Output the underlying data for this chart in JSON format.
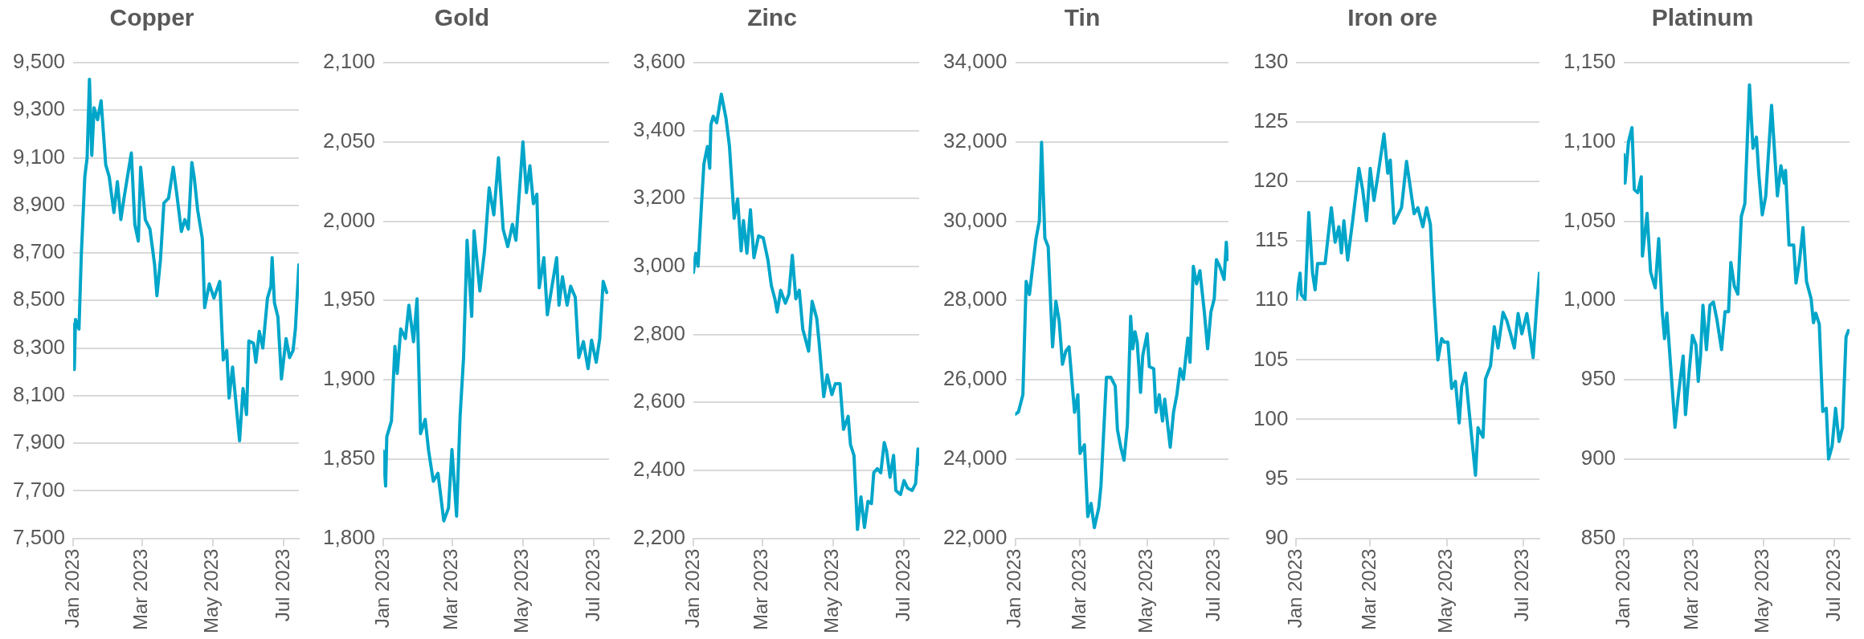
{
  "chart_data": [
    {
      "type": "line",
      "title": "Copper",
      "color": "#00a6c9",
      "grid": "y",
      "xlim": [
        "2023-01-01",
        "2023-07-14"
      ],
      "xticks": [
        {
          "value": "2023-01-01",
          "label": "Jan 2023"
        },
        {
          "value": "2023-03-01",
          "label": "Mar 2023"
        },
        {
          "value": "2023-05-01",
          "label": "May 2023"
        },
        {
          "value": "2023-07-01",
          "label": "Jul 2023"
        }
      ],
      "ylim": [
        7500,
        9500
      ],
      "yticks": [
        {
          "value": 7500,
          "label": "7,500"
        },
        {
          "value": 7700,
          "label": "7,700"
        },
        {
          "value": 7900,
          "label": "7,900"
        },
        {
          "value": 8100,
          "label": "8,100"
        },
        {
          "value": 8300,
          "label": "8,300"
        },
        {
          "value": 8500,
          "label": "8,500"
        },
        {
          "value": 8700,
          "label": "8,700"
        },
        {
          "value": 8900,
          "label": "8,900"
        },
        {
          "value": 9100,
          "label": "9,100"
        },
        {
          "value": 9300,
          "label": "9,300"
        },
        {
          "value": 9500,
          "label": "9,500"
        }
      ],
      "x": [
        "2023-01-01",
        "2023-01-02",
        "2023-01-03",
        "2023-01-06",
        "2023-01-08",
        "2023-01-11",
        "2023-01-13",
        "2023-01-15",
        "2023-01-17",
        "2023-01-19",
        "2023-01-22",
        "2023-01-25",
        "2023-01-29",
        "2023-02-01",
        "2023-02-05",
        "2023-02-08",
        "2023-02-11",
        "2023-02-14",
        "2023-02-20",
        "2023-02-23",
        "2023-02-26",
        "2023-02-28",
        "2023-03-04",
        "2023-03-08",
        "2023-03-12",
        "2023-03-14",
        "2023-03-17",
        "2023-03-20",
        "2023-03-24",
        "2023-03-28",
        "2023-03-31",
        "2023-04-04",
        "2023-04-07",
        "2023-04-10",
        "2023-04-13",
        "2023-04-15",
        "2023-04-18",
        "2023-04-22",
        "2023-04-24",
        "2023-04-28",
        "2023-05-02",
        "2023-05-07",
        "2023-05-10",
        "2023-05-13",
        "2023-05-15",
        "2023-05-18",
        "2023-05-24",
        "2023-05-27",
        "2023-05-30",
        "2023-06-01",
        "2023-06-05",
        "2023-06-07",
        "2023-06-10",
        "2023-06-13",
        "2023-06-17",
        "2023-06-20",
        "2023-06-21",
        "2023-06-23",
        "2023-06-26",
        "2023-06-29",
        "2023-07-03",
        "2023-07-06",
        "2023-07-09",
        "2023-07-11",
        "2023-07-14"
      ],
      "values": [
        8400,
        8210,
        8420,
        8380,
        8690,
        9020,
        9100,
        9430,
        9110,
        9310,
        9260,
        9340,
        9070,
        9020,
        8870,
        9000,
        8840,
        8940,
        9120,
        8820,
        8750,
        9060,
        8840,
        8800,
        8650,
        8520,
        8670,
        8910,
        8930,
        9060,
        8950,
        8790,
        8840,
        8800,
        9080,
        9020,
        8880,
        8760,
        8470,
        8570,
        8510,
        8580,
        8250,
        8290,
        8090,
        8220,
        7910,
        8130,
        8020,
        8330,
        8320,
        8240,
        8370,
        8300,
        8510,
        8560,
        8680,
        8490,
        8430,
        8170,
        8340,
        8260,
        8290,
        8380,
        8650
      ]
    },
    {
      "type": "line",
      "title": "Gold",
      "color": "#00a6c9",
      "grid": "y",
      "xlim": [
        "2023-01-01",
        "2023-07-14"
      ],
      "xticks": [
        {
          "value": "2023-01-01",
          "label": "Jan 2023"
        },
        {
          "value": "2023-03-01",
          "label": "Mar 2023"
        },
        {
          "value": "2023-05-01",
          "label": "May 2023"
        },
        {
          "value": "2023-07-01",
          "label": "Jul 2023"
        }
      ],
      "ylim": [
        1800,
        2100
      ],
      "yticks": [
        {
          "value": 1800,
          "label": "1,800"
        },
        {
          "value": 1850,
          "label": "1,850"
        },
        {
          "value": 1900,
          "label": "1,900"
        },
        {
          "value": 1950,
          "label": "1,950"
        },
        {
          "value": 2000,
          "label": "2,000"
        },
        {
          "value": 2050,
          "label": "2,050"
        },
        {
          "value": 2100,
          "label": "2,100"
        }
      ],
      "x": [
        "2023-01-01",
        "2023-01-03",
        "2023-01-04",
        "2023-01-08",
        "2023-01-11",
        "2023-01-13",
        "2023-01-16",
        "2023-01-20",
        "2023-01-23",
        "2023-01-27",
        "2023-01-30",
        "2023-02-02",
        "2023-02-06",
        "2023-02-09",
        "2023-02-13",
        "2023-02-17",
        "2023-02-22",
        "2023-02-26",
        "2023-03-01",
        "2023-03-05",
        "2023-03-08",
        "2023-03-11",
        "2023-03-14",
        "2023-03-18",
        "2023-03-20",
        "2023-03-25",
        "2023-03-29",
        "2023-04-02",
        "2023-04-06",
        "2023-04-10",
        "2023-04-14",
        "2023-04-18",
        "2023-04-22",
        "2023-04-25",
        "2023-05-01",
        "2023-05-04",
        "2023-05-07",
        "2023-05-10",
        "2023-05-13",
        "2023-05-15",
        "2023-05-19",
        "2023-05-22",
        "2023-05-26",
        "2023-05-30",
        "2023-06-01",
        "2023-06-04",
        "2023-06-08",
        "2023-06-11",
        "2023-06-15",
        "2023-06-18",
        "2023-06-22",
        "2023-06-26",
        "2023-06-29",
        "2023-07-03",
        "2023-07-06",
        "2023-07-09",
        "2023-07-12"
      ],
      "values": [
        1855,
        1833,
        1864,
        1874,
        1921,
        1904,
        1932,
        1926,
        1947,
        1924,
        1951,
        1866,
        1875,
        1855,
        1836,
        1841,
        1811,
        1819,
        1856,
        1814,
        1877,
        1914,
        1988,
        1940,
        1994,
        1956,
        1981,
        2021,
        2004,
        2040,
        1995,
        1984,
        1998,
        1988,
        2050,
        2018,
        2035,
        2011,
        2017,
        1958,
        1977,
        1941,
        1959,
        1977,
        1947,
        1965,
        1947,
        1959,
        1952,
        1914,
        1924,
        1907,
        1925,
        1911,
        1926,
        1962,
        1955
      ]
    },
    {
      "type": "line",
      "title": "Zinc",
      "color": "#00a6c9",
      "grid": "y",
      "xlim": [
        "2023-01-01",
        "2023-07-14"
      ],
      "xticks": [
        {
          "value": "2023-01-01",
          "label": "Jan 2023"
        },
        {
          "value": "2023-03-01",
          "label": "Mar 2023"
        },
        {
          "value": "2023-05-01",
          "label": "May 2023"
        },
        {
          "value": "2023-07-01",
          "label": "Jul 2023"
        }
      ],
      "ylim": [
        2200,
        3600
      ],
      "yticks": [
        {
          "value": 2200,
          "label": "2,200"
        },
        {
          "value": 2400,
          "label": "2,400"
        },
        {
          "value": 2600,
          "label": "2,600"
        },
        {
          "value": 2800,
          "label": "2,800"
        },
        {
          "value": 3000,
          "label": "3,000"
        },
        {
          "value": 3200,
          "label": "3,200"
        },
        {
          "value": 3400,
          "label": "3,400"
        },
        {
          "value": 3600,
          "label": "3,600"
        }
      ],
      "x": [
        "2023-01-01",
        "2023-01-03",
        "2023-01-05",
        "2023-01-08",
        "2023-01-10",
        "2023-01-13",
        "2023-01-15",
        "2023-01-16",
        "2023-01-18",
        "2023-01-21",
        "2023-01-25",
        "2023-01-29",
        "2023-02-01",
        "2023-02-05",
        "2023-02-08",
        "2023-02-11",
        "2023-02-13",
        "2023-02-16",
        "2023-02-19",
        "2023-02-22",
        "2023-02-26",
        "2023-03-02",
        "2023-03-06",
        "2023-03-09",
        "2023-03-12",
        "2023-03-14",
        "2023-03-17",
        "2023-03-21",
        "2023-03-24",
        "2023-03-27",
        "2023-03-30",
        "2023-04-02",
        "2023-04-05",
        "2023-04-07",
        "2023-04-10",
        "2023-04-13",
        "2023-04-17",
        "2023-04-19",
        "2023-04-23",
        "2023-04-26",
        "2023-04-30",
        "2023-05-03",
        "2023-05-07",
        "2023-05-10",
        "2023-05-14",
        "2023-05-16",
        "2023-05-19",
        "2023-05-22",
        "2023-05-25",
        "2023-05-28",
        "2023-05-31",
        "2023-06-03",
        "2023-06-05",
        "2023-06-08",
        "2023-06-11",
        "2023-06-14",
        "2023-06-16",
        "2023-06-19",
        "2023-06-22",
        "2023-06-24",
        "2023-06-28",
        "2023-07-01",
        "2023-07-04",
        "2023-07-08",
        "2023-07-11",
        "2023-07-13",
        "2023-07-14"
      ],
      "values": [
        2982,
        3039,
        3001,
        3186,
        3302,
        3353,
        3289,
        3417,
        3442,
        3423,
        3507,
        3436,
        3353,
        3142,
        3199,
        3046,
        3135,
        3039,
        3167,
        3026,
        3090,
        3084,
        3020,
        2943,
        2905,
        2866,
        2930,
        2892,
        2918,
        3033,
        2905,
        2930,
        2815,
        2790,
        2751,
        2898,
        2847,
        2777,
        2617,
        2681,
        2623,
        2655,
        2655,
        2521,
        2559,
        2476,
        2444,
        2226,
        2322,
        2232,
        2309,
        2302,
        2393,
        2405,
        2393,
        2482,
        2457,
        2380,
        2444,
        2341,
        2329,
        2370,
        2348,
        2341,
        2361,
        2463,
        2418
      ]
    },
    {
      "type": "line",
      "title": "Tin",
      "color": "#00a6c9",
      "grid": "y",
      "xlim": [
        "2023-01-01",
        "2023-07-14"
      ],
      "xticks": [
        {
          "value": "2023-01-01",
          "label": "Jan 2023"
        },
        {
          "value": "2023-03-01",
          "label": "Mar 2023"
        },
        {
          "value": "2023-05-01",
          "label": "May 2023"
        },
        {
          "value": "2023-07-01",
          "label": "Jul 2023"
        }
      ],
      "ylim": [
        22000,
        34000
      ],
      "yticks": [
        {
          "value": 22000,
          "label": "22,000"
        },
        {
          "value": 24000,
          "label": "24,000"
        },
        {
          "value": 26000,
          "label": "26,000"
        },
        {
          "value": 28000,
          "label": "28,000"
        },
        {
          "value": 30000,
          "label": "30,000"
        },
        {
          "value": 32000,
          "label": "32,000"
        },
        {
          "value": 34000,
          "label": "34,000"
        }
      ],
      "x": [
        "2023-01-01",
        "2023-01-04",
        "2023-01-08",
        "2023-01-11",
        "2023-01-14",
        "2023-01-16",
        "2023-01-20",
        "2023-01-23",
        "2023-01-25",
        "2023-01-28",
        "2023-01-31",
        "2023-02-04",
        "2023-02-07",
        "2023-02-10",
        "2023-02-13",
        "2023-02-16",
        "2023-02-19",
        "2023-02-24",
        "2023-02-27",
        "2023-03-01",
        "2023-03-05",
        "2023-03-08",
        "2023-03-11",
        "2023-03-14",
        "2023-03-18",
        "2023-03-20",
        "2023-03-25",
        "2023-03-29",
        "2023-04-02",
        "2023-04-04",
        "2023-04-07",
        "2023-04-10",
        "2023-04-13",
        "2023-04-16",
        "2023-04-18",
        "2023-04-20",
        "2023-04-22",
        "2023-04-25",
        "2023-04-27",
        "2023-05-01",
        "2023-05-03",
        "2023-05-07",
        "2023-05-09",
        "2023-05-12",
        "2023-05-15",
        "2023-05-17",
        "2023-05-22",
        "2023-05-25",
        "2023-05-28",
        "2023-05-31",
        "2023-06-03",
        "2023-06-07",
        "2023-06-09",
        "2023-06-12",
        "2023-06-15",
        "2023-06-18",
        "2023-06-22",
        "2023-06-25",
        "2023-06-28",
        "2023-07-01",
        "2023-07-03",
        "2023-07-06",
        "2023-07-10",
        "2023-07-12",
        "2023-07-13"
      ],
      "values": [
        25130,
        25190,
        25620,
        28480,
        28150,
        28640,
        29570,
        30010,
        31990,
        29570,
        29360,
        26830,
        27980,
        27490,
        26390,
        26720,
        26830,
        25180,
        25620,
        24140,
        24360,
        22550,
        22880,
        22270,
        22770,
        23320,
        26060,
        26060,
        25840,
        24740,
        24300,
        23970,
        24850,
        27600,
        26780,
        27210,
        26940,
        25680,
        26610,
        27160,
        26330,
        26280,
        25180,
        25620,
        24960,
        25510,
        24300,
        25180,
        25620,
        26280,
        26010,
        27050,
        26440,
        28860,
        28420,
        28750,
        27710,
        26780,
        27710,
        28040,
        29030,
        28860,
        28530,
        29470,
        29030
      ]
    },
    {
      "type": "line",
      "title": "Iron ore",
      "color": "#00a6c9",
      "grid": "y",
      "xlim": [
        "2023-01-01",
        "2023-07-14"
      ],
      "xticks": [
        {
          "value": "2023-01-01",
          "label": "Jan 2023"
        },
        {
          "value": "2023-03-01",
          "label": "Mar 2023"
        },
        {
          "value": "2023-05-01",
          "label": "May 2023"
        },
        {
          "value": "2023-07-01",
          "label": "Jul 2023"
        }
      ],
      "ylim": [
        90,
        130
      ],
      "yticks": [
        90,
        95,
        100,
        105,
        110,
        115,
        120,
        125,
        130
      ],
      "x": [
        "2023-01-01",
        "2023-01-04",
        "2023-01-05",
        "2023-01-08",
        "2023-01-11",
        "2023-01-14",
        "2023-01-16",
        "2023-01-18",
        "2023-01-24",
        "2023-01-29",
        "2023-02-01",
        "2023-02-04",
        "2023-02-06",
        "2023-02-08",
        "2023-02-11",
        "2023-02-15",
        "2023-02-20",
        "2023-02-23",
        "2023-02-26",
        "2023-03-01",
        "2023-03-04",
        "2023-03-07",
        "2023-03-12",
        "2023-03-15",
        "2023-03-17",
        "2023-03-20",
        "2023-03-26",
        "2023-03-30",
        "2023-04-02",
        "2023-04-05",
        "2023-04-08",
        "2023-04-12",
        "2023-04-15",
        "2023-04-18",
        "2023-04-21",
        "2023-04-24",
        "2023-04-27",
        "2023-04-29",
        "2023-05-02",
        "2023-05-05",
        "2023-05-08",
        "2023-05-11",
        "2023-05-13",
        "2023-05-16",
        "2023-05-19",
        "2023-05-24",
        "2023-05-26",
        "2023-05-30",
        "2023-06-01",
        "2023-06-05",
        "2023-06-08",
        "2023-06-11",
        "2023-06-15",
        "2023-06-18",
        "2023-06-21",
        "2023-06-24",
        "2023-06-27",
        "2023-06-30",
        "2023-07-04",
        "2023-07-09",
        "2023-07-12",
        "2023-07-14"
      ],
      "values": [
        110.1,
        112.3,
        110.5,
        110.1,
        117.4,
        112.3,
        110.9,
        113.1,
        113.1,
        117.8,
        114.9,
        116.2,
        114.0,
        116.7,
        113.4,
        116.7,
        121.1,
        119.3,
        116.7,
        121.1,
        118.4,
        120.4,
        124.0,
        120.7,
        121.8,
        116.5,
        117.8,
        121.7,
        119.5,
        117.3,
        117.8,
        116.2,
        117.8,
        116.4,
        110.1,
        105.0,
        106.8,
        106.5,
        106.5,
        102.6,
        103.2,
        99.7,
        102.8,
        103.9,
        100.6,
        95.3,
        99.3,
        98.5,
        103.4,
        104.5,
        107.8,
        106.0,
        109.0,
        108.3,
        107.2,
        106.0,
        108.9,
        107.2,
        108.9,
        105.2,
        109.8,
        112.3
      ]
    },
    {
      "type": "line",
      "title": "Platinum",
      "color": "#00a6c9",
      "grid": "y",
      "xlim": [
        "2023-01-01",
        "2023-07-14"
      ],
      "xticks": [
        {
          "value": "2023-01-01",
          "label": "Jan 2023"
        },
        {
          "value": "2023-03-01",
          "label": "Mar 2023"
        },
        {
          "value": "2023-05-01",
          "label": "May 2023"
        },
        {
          "value": "2023-07-01",
          "label": "Jul 2023"
        }
      ],
      "ylim": [
        850,
        1150
      ],
      "yticks": [
        850,
        900,
        950,
        {
          "value": 1000,
          "label": "1,000"
        },
        {
          "value": 1050,
          "label": "1,050"
        },
        {
          "value": 1100,
          "label": "1,100"
        },
        {
          "value": 1150,
          "label": "1,150"
        }
      ],
      "x": [
        "2023-01-01",
        "2023-01-02",
        "2023-01-05",
        "2023-01-08",
        "2023-01-10",
        "2023-01-13",
        "2023-01-16",
        "2023-01-17",
        "2023-01-21",
        "2023-01-24",
        "2023-01-28",
        "2023-01-31",
        "2023-02-03",
        "2023-02-05",
        "2023-02-07",
        "2023-02-11",
        "2023-02-14",
        "2023-02-17",
        "2023-02-21",
        "2023-02-23",
        "2023-02-26",
        "2023-03-01",
        "2023-03-04",
        "2023-03-06",
        "2023-03-08",
        "2023-03-10",
        "2023-03-13",
        "2023-03-16",
        "2023-03-19",
        "2023-03-22",
        "2023-03-26",
        "2023-03-29",
        "2023-04-01",
        "2023-04-03",
        "2023-04-06",
        "2023-04-09",
        "2023-04-12",
        "2023-04-15",
        "2023-04-19",
        "2023-04-22",
        "2023-04-25",
        "2023-04-27",
        "2023-04-30",
        "2023-05-03",
        "2023-05-08",
        "2023-05-13",
        "2023-05-16",
        "2023-05-19",
        "2023-05-20",
        "2023-05-23",
        "2023-05-27",
        "2023-05-29",
        "2023-06-01",
        "2023-06-04",
        "2023-06-07",
        "2023-06-11",
        "2023-06-13",
        "2023-06-15",
        "2023-06-18",
        "2023-06-21",
        "2023-06-24",
        "2023-06-26",
        "2023-06-29",
        "2023-07-02",
        "2023-07-05",
        "2023-07-08",
        "2023-07-11",
        "2023-07-13"
      ],
      "values": [
        1092,
        1074,
        1100,
        1109,
        1070,
        1068,
        1078,
        1028,
        1055,
        1018,
        1008,
        1039,
        993,
        976,
        992,
        951,
        920,
        941,
        965,
        928,
        954,
        978,
        972,
        949,
        966,
        997,
        969,
        997,
        999,
        988,
        969,
        993,
        993,
        1024,
        1009,
        1004,
        1053,
        1061,
        1136,
        1096,
        1103,
        1080,
        1054,
        1066,
        1123,
        1066,
        1085,
        1074,
        1082,
        1035,
        1035,
        1011,
        1025,
        1046,
        1012,
        1001,
        986,
        992,
        985,
        930,
        932,
        900,
        908,
        932,
        911,
        920,
        977,
        981
      ]
    }
  ]
}
